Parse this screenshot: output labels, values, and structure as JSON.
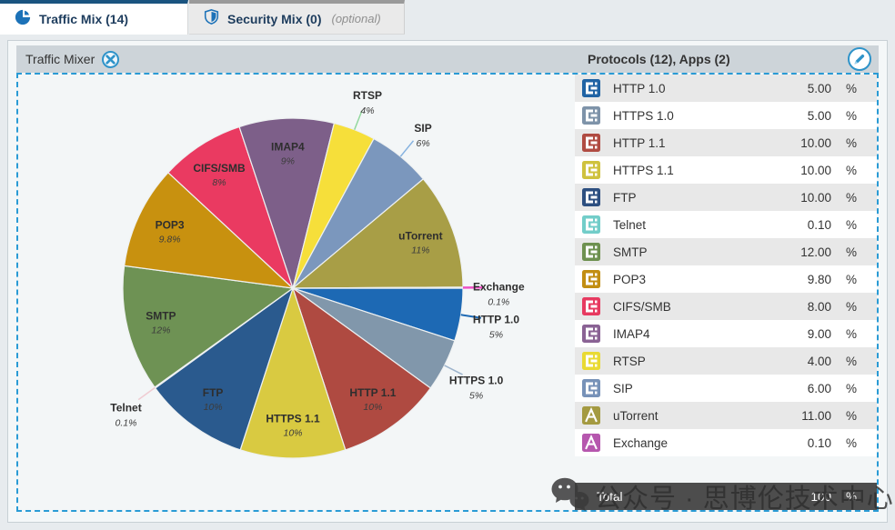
{
  "tabs": {
    "traffic": {
      "label": "Traffic Mix (14)"
    },
    "security": {
      "label": "Security Mix (0)",
      "suffix": "(optional)"
    }
  },
  "panel": {
    "mixer_title": "Traffic Mixer",
    "list_title": "Protocols (12), Apps (2)"
  },
  "table": {
    "rows": [
      {
        "name": "HTTP 1.0",
        "value": "5.00",
        "unit": "%",
        "kind": "protocol",
        "icon_color": "#2063a4"
      },
      {
        "name": "HTTPS 1.0",
        "value": "5.00",
        "unit": "%",
        "kind": "protocol",
        "icon_color": "#7e93a9"
      },
      {
        "name": "HTTP 1.1",
        "value": "10.00",
        "unit": "%",
        "kind": "protocol",
        "icon_color": "#b04b42"
      },
      {
        "name": "HTTPS 1.1",
        "value": "10.00",
        "unit": "%",
        "kind": "protocol",
        "icon_color": "#cfc23e"
      },
      {
        "name": "FTP",
        "value": "10.00",
        "unit": "%",
        "kind": "protocol",
        "icon_color": "#2d4f80"
      },
      {
        "name": "Telnet",
        "value": "0.10",
        "unit": "%",
        "kind": "protocol",
        "icon_color": "#72cdc9"
      },
      {
        "name": "SMTP",
        "value": "12.00",
        "unit": "%",
        "kind": "protocol",
        "icon_color": "#6e9150"
      },
      {
        "name": "POP3",
        "value": "9.80",
        "unit": "%",
        "kind": "protocol",
        "icon_color": "#c28e12"
      },
      {
        "name": "CIFS/SMB",
        "value": "8.00",
        "unit": "%",
        "kind": "protocol",
        "icon_color": "#e73a60"
      },
      {
        "name": "IMAP4",
        "value": "9.00",
        "unit": "%",
        "kind": "protocol",
        "icon_color": "#8a6294"
      },
      {
        "name": "RTSP",
        "value": "4.00",
        "unit": "%",
        "kind": "protocol",
        "icon_color": "#e9da33"
      },
      {
        "name": "SIP",
        "value": "6.00",
        "unit": "%",
        "kind": "protocol",
        "icon_color": "#7792b8"
      },
      {
        "name": "uTorrent",
        "value": "11.00",
        "unit": "%",
        "kind": "app",
        "icon_color": "#a49a41"
      },
      {
        "name": "Exchange",
        "value": "0.10",
        "unit": "%",
        "kind": "app",
        "icon_color": "#b657ae"
      }
    ],
    "total": {
      "label": "Total",
      "value": "100",
      "unit": "%"
    }
  },
  "chart_data": {
    "type": "pie",
    "title": "Traffic Mixer",
    "start_angle_deg": 0,
    "direction": "clockwise",
    "total": 100,
    "slices": [
      {
        "label": "HTTP 1.0",
        "value": 5,
        "pct_label": "5%",
        "color": "#1d69b4",
        "label_pos": "outside",
        "leader_color": "#1d69b4",
        "leader_width": 2
      },
      {
        "label": "HTTPS 1.0",
        "value": 5,
        "pct_label": "5%",
        "color": "#8197ab",
        "label_pos": "outside",
        "leader_color": "#9db4cc",
        "leader_width": 1.5
      },
      {
        "label": "HTTP 1.1",
        "value": 10,
        "pct_label": "10%",
        "color": "#af4a41",
        "label_pos": "inside"
      },
      {
        "label": "HTTPS 1.1",
        "value": 10,
        "pct_label": "10%",
        "color": "#d9ca41",
        "label_pos": "inside"
      },
      {
        "label": "FTP",
        "value": 10,
        "pct_label": "10%",
        "color": "#2a5a8e",
        "label_pos": "inside"
      },
      {
        "label": "Telnet",
        "value": 0.1,
        "pct_label": "0.1%",
        "color": "#72cdc9",
        "label_pos": "outside",
        "leader_color": "#f0ccd2",
        "leader_width": 1.5
      },
      {
        "label": "SMTP",
        "value": 12,
        "pct_label": "12%",
        "color": "#6e9254",
        "label_pos": "inside"
      },
      {
        "label": "POP3",
        "value": 9.8,
        "pct_label": "9.8%",
        "color": "#c8910f",
        "label_pos": "inside"
      },
      {
        "label": "CIFS/SMB",
        "value": 8,
        "pct_label": "8%",
        "color": "#ea3a61",
        "label_pos": "inside"
      },
      {
        "label": "IMAP4",
        "value": 9,
        "pct_label": "9%",
        "color": "#7d5f89",
        "label_pos": "inside"
      },
      {
        "label": "RTSP",
        "value": 4,
        "pct_label": "4%",
        "color": "#f6df3a",
        "label_pos": "outside",
        "leader_color": "#93d89e",
        "leader_width": 1.5
      },
      {
        "label": "SIP",
        "value": 6,
        "pct_label": "6%",
        "color": "#7b97bd",
        "label_pos": "outside",
        "leader_color": "#85b2e0",
        "leader_width": 1.5
      },
      {
        "label": "uTorrent",
        "value": 11,
        "pct_label": "11%",
        "color": "#a89e46",
        "label_pos": "inside"
      },
      {
        "label": "Exchange",
        "value": 0.1,
        "pct_label": "0.1%",
        "color": "#ed52c5",
        "label_pos": "outside",
        "leader_color": "#ed52c5",
        "leader_width": 2.5
      }
    ]
  },
  "watermark": {
    "text": "公众号 · 思博伦技术中心"
  }
}
